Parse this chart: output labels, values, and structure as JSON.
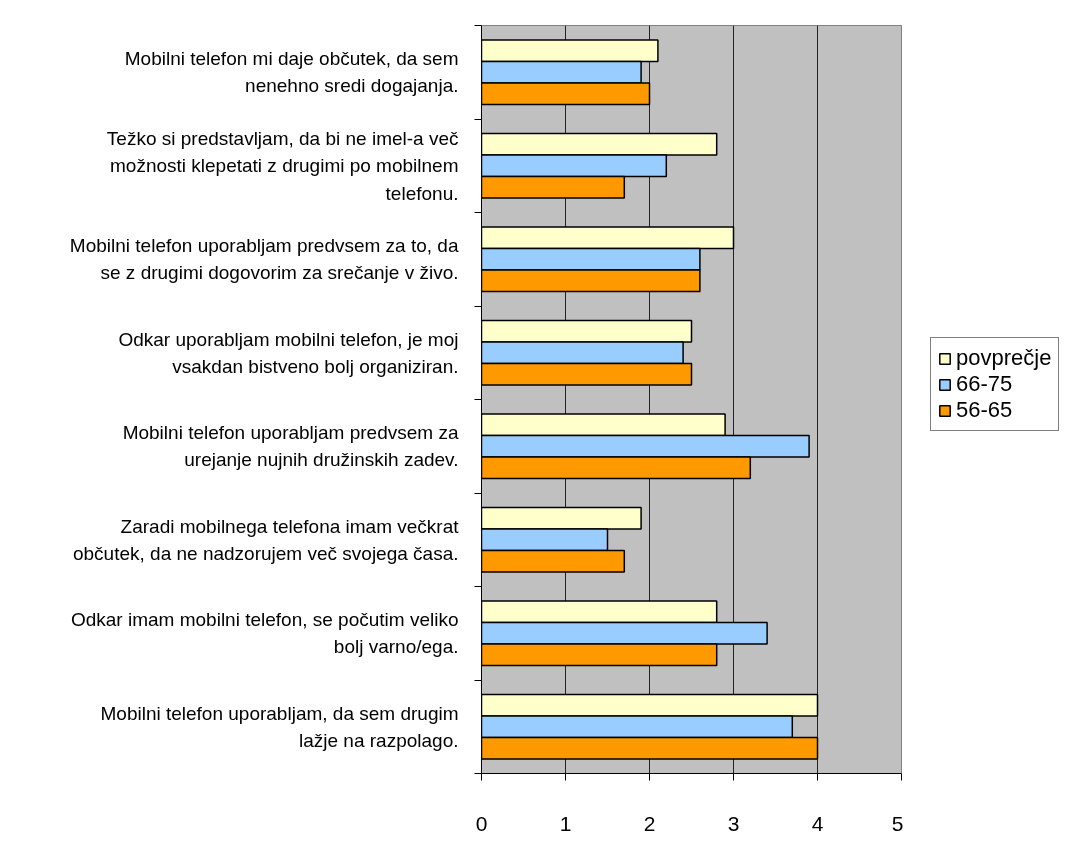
{
  "chart_data": {
    "type": "bar",
    "orientation": "horizontal",
    "categories": [
      "Mobilni telefon mi daje občutek, da sem nenehno sredi dogajanja.",
      "Težko si predstavljam, da bi ne imel-a več možnosti klepetati z drugimi po mobilnem telefonu.",
      "Mobilni telefon uporabljam predvsem za to, da se z drugimi dogovorim za srečanje v živo.",
      "Odkar uporabljam mobilni telefon, je moj vsakdan bistveno bolj organiziran.",
      "Mobilni telefon uporabljam predvsem za urejanje nujnih družinskih zadev.",
      "Zaradi mobilnega telefona imam večkrat občutek, da ne nadzorujem več svojega časa.",
      "Odkar imam mobilni telefon, se počutim veliko bolj varno/ega.",
      "Mobilni telefon uporabljam, da sem drugim lažje na razpolago."
    ],
    "series": [
      {
        "name": "povprečje",
        "color": "#ffffcc",
        "values": [
          2.1,
          2.8,
          3.0,
          2.5,
          2.9,
          1.9,
          2.8,
          4.0
        ]
      },
      {
        "name": "66-75",
        "color": "#99ccff",
        "values": [
          1.9,
          2.2,
          2.6,
          2.4,
          3.9,
          1.5,
          3.4,
          3.7
        ]
      },
      {
        "name": "56-65",
        "color": "#ff9900",
        "values": [
          2.0,
          1.7,
          2.6,
          2.5,
          3.2,
          1.7,
          2.8,
          4.0
        ]
      }
    ],
    "xlim": [
      0,
      5
    ],
    "xticks": [
      0,
      1,
      2,
      3,
      4,
      5
    ],
    "grid": "x",
    "legend": "right"
  }
}
